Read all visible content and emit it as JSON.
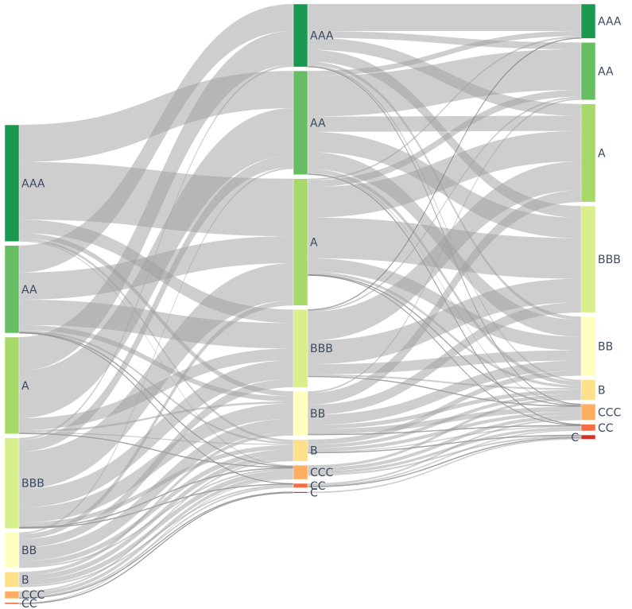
{
  "chart_data": {
    "type": "sankey",
    "title": "",
    "colors": {
      "AAA": "#1a9850",
      "AA": "#66bd63",
      "A": "#a6d96a",
      "BBB": "#d9ef8b",
      "BB": "#ffffbf",
      "B": "#fee08b",
      "CCC": "#fdae61",
      "CC": "#f46d43",
      "C": "#d73027",
      "link": "#9e9e9e"
    },
    "columns": [
      {
        "stage": 1,
        "nodes": [
          {
            "id": "L0_AAA",
            "label": "AAA",
            "rating": "AAA"
          },
          {
            "id": "L0_AA",
            "label": "AA",
            "rating": "AA"
          },
          {
            "id": "L0_A",
            "label": "A",
            "rating": "A"
          },
          {
            "id": "L0_BBB",
            "label": "BBB",
            "rating": "BBB"
          },
          {
            "id": "L0_BB",
            "label": "BB",
            "rating": "BB"
          },
          {
            "id": "L0_B",
            "label": "B",
            "rating": "B"
          },
          {
            "id": "L0_CCC",
            "label": "CCC",
            "rating": "CCC"
          },
          {
            "id": "L0_CC",
            "label": "CC",
            "rating": "CC"
          }
        ]
      },
      {
        "stage": 2,
        "nodes": [
          {
            "id": "L1_AAA",
            "label": "AAA",
            "rating": "AAA"
          },
          {
            "id": "L1_AA",
            "label": "AA",
            "rating": "AA"
          },
          {
            "id": "L1_A",
            "label": "A",
            "rating": "A"
          },
          {
            "id": "L1_BBB",
            "label": "BBB",
            "rating": "BBB"
          },
          {
            "id": "L1_BB",
            "label": "BB",
            "rating": "BB"
          },
          {
            "id": "L1_B",
            "label": "B",
            "rating": "B"
          },
          {
            "id": "L1_CCC",
            "label": "CCC",
            "rating": "CCC"
          },
          {
            "id": "L1_CC",
            "label": "CC",
            "rating": "CC"
          },
          {
            "id": "L1_C",
            "label": "C",
            "rating": "C"
          }
        ]
      },
      {
        "stage": 3,
        "nodes": [
          {
            "id": "L2_AAA",
            "label": "AAA",
            "rating": "AAA"
          },
          {
            "id": "L2_AA",
            "label": "AA",
            "rating": "AA"
          },
          {
            "id": "L2_A",
            "label": "A",
            "rating": "A"
          },
          {
            "id": "L2_BBB",
            "label": "BBB",
            "rating": "BBB"
          },
          {
            "id": "L2_BB",
            "label": "BB",
            "rating": "BB"
          },
          {
            "id": "L2_B",
            "label": "B",
            "rating": "B"
          },
          {
            "id": "L2_CCC",
            "label": "CCC",
            "rating": "CCC"
          },
          {
            "id": "L2_CC",
            "label": "CC",
            "rating": "CC"
          },
          {
            "id": "L2_C",
            "label": "C",
            "rating": "C"
          }
        ]
      }
    ],
    "links": [
      {
        "source": "L0_AAA",
        "target": "L1_AA",
        "value": 11
      },
      {
        "source": "L0_AAA",
        "target": "L1_A",
        "value": 17
      },
      {
        "source": "L0_AAA",
        "target": "L1_BBB",
        "value": 4
      },
      {
        "source": "L0_AAA",
        "target": "L1_BB",
        "value": 1.5
      },
      {
        "source": "L0_AAA",
        "target": "L1_B",
        "value": 0.7
      },
      {
        "source": "L0_AAA",
        "target": "L1_CCC",
        "value": 0.3
      },
      {
        "source": "L0_AA",
        "target": "L1_AAA",
        "value": 8
      },
      {
        "source": "L0_AA",
        "target": "L1_A",
        "value": 8
      },
      {
        "source": "L0_AA",
        "target": "L1_BBB",
        "value": 7.5
      },
      {
        "source": "L0_AA",
        "target": "L1_BB",
        "value": 1.5
      },
      {
        "source": "L0_AA",
        "target": "L1_B",
        "value": 0.6
      },
      {
        "source": "L0_AA",
        "target": "L1_CCC",
        "value": 0.2
      },
      {
        "source": "L0_AA",
        "target": "L1_CC",
        "value": 0.1
      },
      {
        "source": "L0_A",
        "target": "L1_AAA",
        "value": 10
      },
      {
        "source": "L0_A",
        "target": "L1_AA",
        "value": 14
      },
      {
        "source": "L0_A",
        "target": "L1_BBB",
        "value": 3.5
      },
      {
        "source": "L0_A",
        "target": "L1_BB",
        "value": 0.6
      },
      {
        "source": "L0_A",
        "target": "L1_B",
        "value": 0.3
      },
      {
        "source": "L0_A",
        "target": "L1_CCC",
        "value": 0.2
      },
      {
        "source": "L0_BBB",
        "target": "L1_AAA",
        "value": 0.6
      },
      {
        "source": "L0_BBB",
        "target": "L1_AA",
        "value": 3.5
      },
      {
        "source": "L0_BBB",
        "target": "L1_A",
        "value": 11
      },
      {
        "source": "L0_BBB",
        "target": "L1_BBB",
        "value": 5.5
      },
      {
        "source": "L0_BBB",
        "target": "L1_BB",
        "value": 4.5
      },
      {
        "source": "L0_BBB",
        "target": "L1_B",
        "value": 1.3
      },
      {
        "source": "L0_BBB",
        "target": "L1_CCC",
        "value": 0.2
      },
      {
        "source": "L0_BBB",
        "target": "L1_CC",
        "value": 0.2
      },
      {
        "source": "L0_BB",
        "target": "L1_AA",
        "value": 0.5
      },
      {
        "source": "L0_BB",
        "target": "L1_A",
        "value": 1.5
      },
      {
        "source": "L0_BB",
        "target": "L1_BBB",
        "value": 2.5
      },
      {
        "source": "L0_BB",
        "target": "L1_BB",
        "value": 4
      },
      {
        "source": "L0_BB",
        "target": "L1_B",
        "value": 1.5
      },
      {
        "source": "L0_BB",
        "target": "L1_CCC",
        "value": 0.5
      },
      {
        "source": "L0_B",
        "target": "L1_BB",
        "value": 1
      },
      {
        "source": "L0_B",
        "target": "L1_B",
        "value": 1.5
      },
      {
        "source": "L0_B",
        "target": "L1_CCC",
        "value": 1.5
      },
      {
        "source": "L0_B",
        "target": "L1_CC",
        "value": 0.5
      },
      {
        "source": "L0_CCC",
        "target": "L1_B",
        "value": 0.5
      },
      {
        "source": "L0_CCC",
        "target": "L1_CCC",
        "value": 1
      },
      {
        "source": "L0_CCC",
        "target": "L1_CC",
        "value": 0.5
      },
      {
        "source": "L0_CCC",
        "target": "L1_C",
        "value": 0.2
      },
      {
        "source": "L0_CC",
        "target": "L1_CCC",
        "value": 0.3
      },
      {
        "source": "L0_CC",
        "target": "L1_C",
        "value": 0.2
      },
      {
        "source": "L1_AAA",
        "target": "L2_AAA",
        "value": 8
      },
      {
        "source": "L1_AAA",
        "target": "L2_AA",
        "value": 2
      },
      {
        "source": "L1_AAA",
        "target": "L2_A",
        "value": 3.5
      },
      {
        "source": "L1_AAA",
        "target": "L2_BBB",
        "value": 3.5
      },
      {
        "source": "L1_AAA",
        "target": "L2_BB",
        "value": 1
      },
      {
        "source": "L1_AAA",
        "target": "L2_B",
        "value": 0.5
      },
      {
        "source": "L1_AAA",
        "target": "L2_CCC",
        "value": 0.1
      },
      {
        "source": "L1_AA",
        "target": "L2_AAA",
        "value": 1.5
      },
      {
        "source": "L1_AA",
        "target": "L2_AA",
        "value": 12
      },
      {
        "source": "L1_AA",
        "target": "L2_A",
        "value": 4.5
      },
      {
        "source": "L1_AA",
        "target": "L2_BBB",
        "value": 6
      },
      {
        "source": "L1_AA",
        "target": "L2_BB",
        "value": 5
      },
      {
        "source": "L1_AA",
        "target": "L2_B",
        "value": 1.2
      },
      {
        "source": "L1_AA",
        "target": "L2_CCC",
        "value": 0.3
      },
      {
        "source": "L1_AA",
        "target": "L2_CC",
        "value": 0.2
      },
      {
        "source": "L1_A",
        "target": "L2_AAA",
        "value": 0.5
      },
      {
        "source": "L1_A",
        "target": "L2_AA",
        "value": 2
      },
      {
        "source": "L1_A",
        "target": "L2_A",
        "value": 9
      },
      {
        "source": "L1_A",
        "target": "L2_BBB",
        "value": 12
      },
      {
        "source": "L1_A",
        "target": "L2_BB",
        "value": 4
      },
      {
        "source": "L1_A",
        "target": "L2_B",
        "value": 0.8
      },
      {
        "source": "L1_A",
        "target": "L2_CCC",
        "value": 0.2
      },
      {
        "source": "L1_A",
        "target": "L2_CC",
        "value": 0.1
      },
      {
        "source": "L1_BBB",
        "target": "L2_AAA",
        "value": 0.2
      },
      {
        "source": "L1_BBB",
        "target": "L2_AA",
        "value": 0.5
      },
      {
        "source": "L1_BBB",
        "target": "L2_A",
        "value": 8.5
      },
      {
        "source": "L1_BBB",
        "target": "L2_BBB",
        "value": 7
      },
      {
        "source": "L1_BBB",
        "target": "L2_BB",
        "value": 3
      },
      {
        "source": "L1_BBB",
        "target": "L2_B",
        "value": 0.5
      },
      {
        "source": "L1_BBB",
        "target": "L2_CCC",
        "value": 0.2
      },
      {
        "source": "L1_BB",
        "target": "L2_AA",
        "value": 0.5
      },
      {
        "source": "L1_BB",
        "target": "L2_A",
        "value": 3.5
      },
      {
        "source": "L1_BB",
        "target": "L2_BBB",
        "value": 3
      },
      {
        "source": "L1_BB",
        "target": "L2_BB",
        "value": 3
      },
      {
        "source": "L1_BB",
        "target": "L2_B",
        "value": 1.2
      },
      {
        "source": "L1_BB",
        "target": "L2_CCC",
        "value": 1.5
      },
      {
        "source": "L1_BB",
        "target": "L2_CC",
        "value": 0.2
      },
      {
        "source": "L1_B",
        "target": "L2_BB",
        "value": 1.5
      },
      {
        "source": "L1_B",
        "target": "L2_B",
        "value": 1
      },
      {
        "source": "L1_B",
        "target": "L2_CCC",
        "value": 1
      },
      {
        "source": "L1_B",
        "target": "L2_CC",
        "value": 0.3
      },
      {
        "source": "L1_B",
        "target": "L2_C",
        "value": 0.2
      },
      {
        "source": "L1_CCC",
        "target": "L2_B",
        "value": 0.8
      },
      {
        "source": "L1_CCC",
        "target": "L2_CCC",
        "value": 1
      },
      {
        "source": "L1_CCC",
        "target": "L2_CC",
        "value": 0.8
      },
      {
        "source": "L1_CCC",
        "target": "L2_C",
        "value": 0.5
      },
      {
        "source": "L1_CC",
        "target": "L2_CCC",
        "value": 0.5
      },
      {
        "source": "L1_CC",
        "target": "L2_CC",
        "value": 0.4
      },
      {
        "source": "L1_CC",
        "target": "L2_C",
        "value": 0.2
      },
      {
        "source": "L1_C",
        "target": "L2_C",
        "value": 0.4
      }
    ]
  }
}
